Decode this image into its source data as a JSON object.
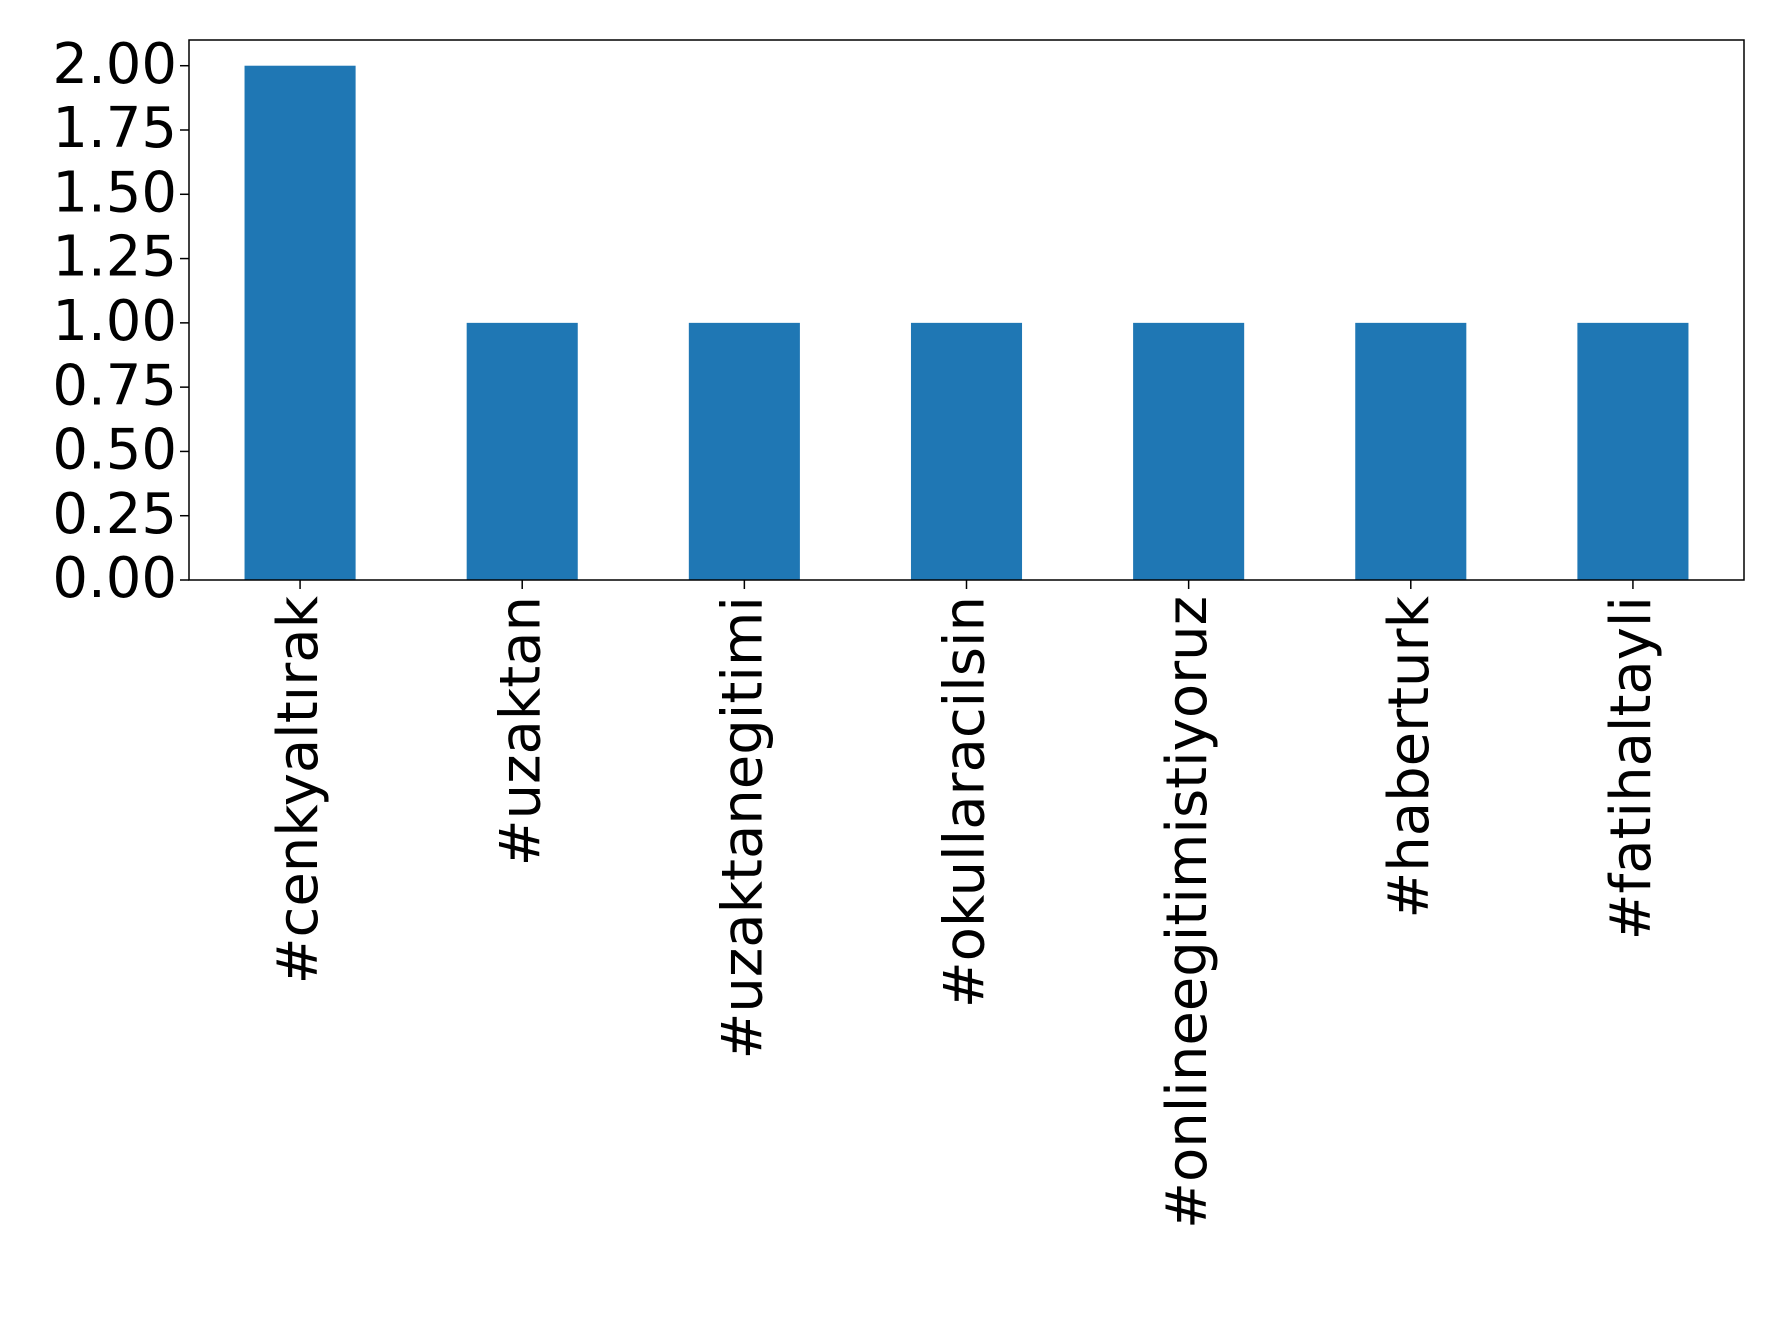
{
  "chart_data": {
    "type": "bar",
    "categories": [
      "#cenkyaltırak",
      "#uzaktan",
      "#uzaktanegitimi",
      "#okullaracilsin",
      "#onlineegitimistiyoruz",
      "#haberturk",
      "#fatihaltayli"
    ],
    "values": [
      2,
      1,
      1,
      1,
      1,
      1,
      1
    ],
    "color": "#1f77b4",
    "ylim": [
      0,
      2.1
    ],
    "yticks": [
      {
        "value": 0,
        "label": "0.00"
      },
      {
        "value": 0.25,
        "label": "0.25"
      },
      {
        "value": 0.5,
        "label": "0.50"
      },
      {
        "value": 0.75,
        "label": "0.75"
      },
      {
        "value": 1,
        "label": "1.00"
      },
      {
        "value": 1.25,
        "label": "1.25"
      },
      {
        "value": 1.5,
        "label": "1.50"
      },
      {
        "value": 1.75,
        "label": "1.75"
      },
      {
        "value": 2,
        "label": "2.00"
      }
    ],
    "grid": false
  }
}
